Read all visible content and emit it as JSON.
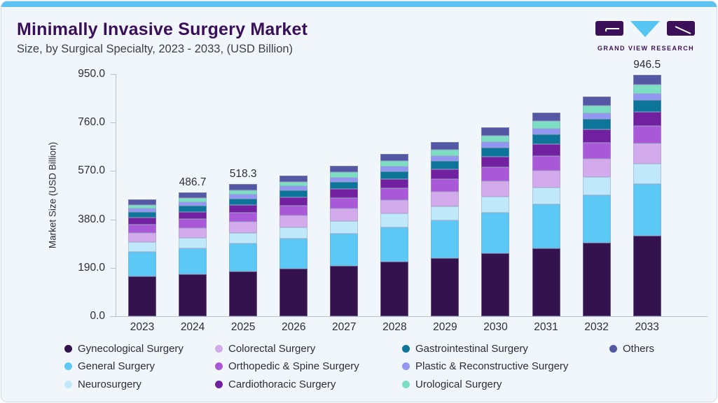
{
  "header": {
    "title": "Minimally Invasive Surgery Market",
    "subtitle": "Size, by Surgical Specialty, 2023 - 2033, (USD Billion)",
    "logo_text": "GRAND VIEW RESEARCH"
  },
  "colors": {
    "accent_top_bar": "#5ec2f0",
    "card_background": "#f0f6fa",
    "card_border": "#cddce8",
    "title_text": "#3a0f5a",
    "body_text": "#2d2d38",
    "axis_line": "#b7c1cb",
    "logo_purple": "#3b1058",
    "logo_cyan": "#56c5f2"
  },
  "chart_data": {
    "type": "bar",
    "stacked": true,
    "stack_order": "bottom-to-top",
    "title": "Minimally Invasive Surgery Market Size, by Surgical Specialty, 2023 - 2033, (USD Billion)",
    "xlabel": "",
    "ylabel": "Market Size (USD Billion)",
    "ylim": [
      0,
      950
    ],
    "grid": false,
    "legend_position": "bottom",
    "yticks": [
      0,
      190,
      380,
      570,
      760,
      950
    ],
    "ytick_labels": [
      "0.0",
      "190.0",
      "380.0",
      "570.0",
      "760.0",
      "950.0"
    ],
    "categories": [
      "2023",
      "2024",
      "2025",
      "2026",
      "2027",
      "2028",
      "2029",
      "2030",
      "2031",
      "2032",
      "2033"
    ],
    "bar_total_labels": [
      "",
      "486.7",
      "518.3",
      "",
      "",
      "",
      "",
      "",
      "",
      "",
      "946.5"
    ],
    "totals_estimated": [
      458.6,
      486.7,
      518.3,
      553.0,
      591.0,
      636.9,
      682.4,
      741.0,
      799.0,
      863.5,
      946.5
    ],
    "series": [
      {
        "name": "Gynecological Surgery",
        "color": "#33124d",
        "values": [
          155.0,
          164.2,
          174.6,
          185.9,
          198.3,
          213.4,
          228.2,
          247.3,
          266.2,
          287.2,
          314.4
        ]
      },
      {
        "name": "General Surgery",
        "color": "#5cc8f5",
        "values": [
          96.6,
          102.8,
          109.8,
          117.5,
          126.0,
          136.2,
          146.4,
          159.4,
          172.4,
          186.9,
          205.5
        ]
      },
      {
        "name": "Neurosurgery",
        "color": "#bfe9fa",
        "values": [
          38.5,
          40.8,
          43.5,
          46.4,
          49.6,
          53.4,
          57.2,
          62.1,
          67.0,
          72.4,
          79.3
        ]
      },
      {
        "name": "Colorectal Surgery",
        "color": "#d3abec",
        "values": [
          36.7,
          39.2,
          41.9,
          45.0,
          48.3,
          52.4,
          56.4,
          61.6,
          66.7,
          72.5,
          79.9
        ]
      },
      {
        "name": "Orthopedic & Spine Surgery",
        "color": "#a958d8",
        "values": [
          33.5,
          35.5,
          37.7,
          40.2,
          42.8,
          46.0,
          49.2,
          53.3,
          57.4,
          61.9,
          67.7
        ]
      },
      {
        "name": "Cardiothoracic Surgery",
        "color": "#71209f",
        "values": [
          26.0,
          27.7,
          29.6,
          31.8,
          34.1,
          36.9,
          39.7,
          43.3,
          46.8,
          50.8,
          55.9
        ]
      },
      {
        "name": "Gastrointestinal Surgery",
        "color": "#0c7599",
        "values": [
          22.3,
          23.6,
          25.1,
          26.8,
          28.6,
          30.8,
          32.9,
          35.7,
          38.4,
          41.5,
          45.4
        ]
      },
      {
        "name": "Plastic & Reconstructive Surgery",
        "color": "#9397f4",
        "values": [
          13.6,
          14.2,
          14.9,
          15.7,
          16.5,
          17.5,
          18.5,
          19.8,
          21.0,
          22.3,
          24.0
        ]
      },
      {
        "name": "Urological Surgery",
        "color": "#7cdfc3",
        "values": [
          15.3,
          16.5,
          17.8,
          19.2,
          20.7,
          22.6,
          24.5,
          26.9,
          29.4,
          32.1,
          35.6
        ]
      },
      {
        "name": "Others",
        "color": "#5457a4",
        "values": [
          21.1,
          22.1,
          23.3,
          24.6,
          26.0,
          27.7,
          29.3,
          31.5,
          33.6,
          35.8,
          38.8
        ]
      }
    ]
  },
  "legend": {
    "columns": [
      [
        "Gynecological Surgery",
        "General Surgery",
        "Neurosurgery"
      ],
      [
        "Colorectal Surgery",
        "Orthopedic & Spine Surgery",
        "Cardiothoracic Surgery"
      ],
      [
        "Gastrointestinal Surgery",
        "Plastic & Reconstructive Surgery",
        "Urological Surgery"
      ],
      [
        "Others"
      ]
    ]
  }
}
